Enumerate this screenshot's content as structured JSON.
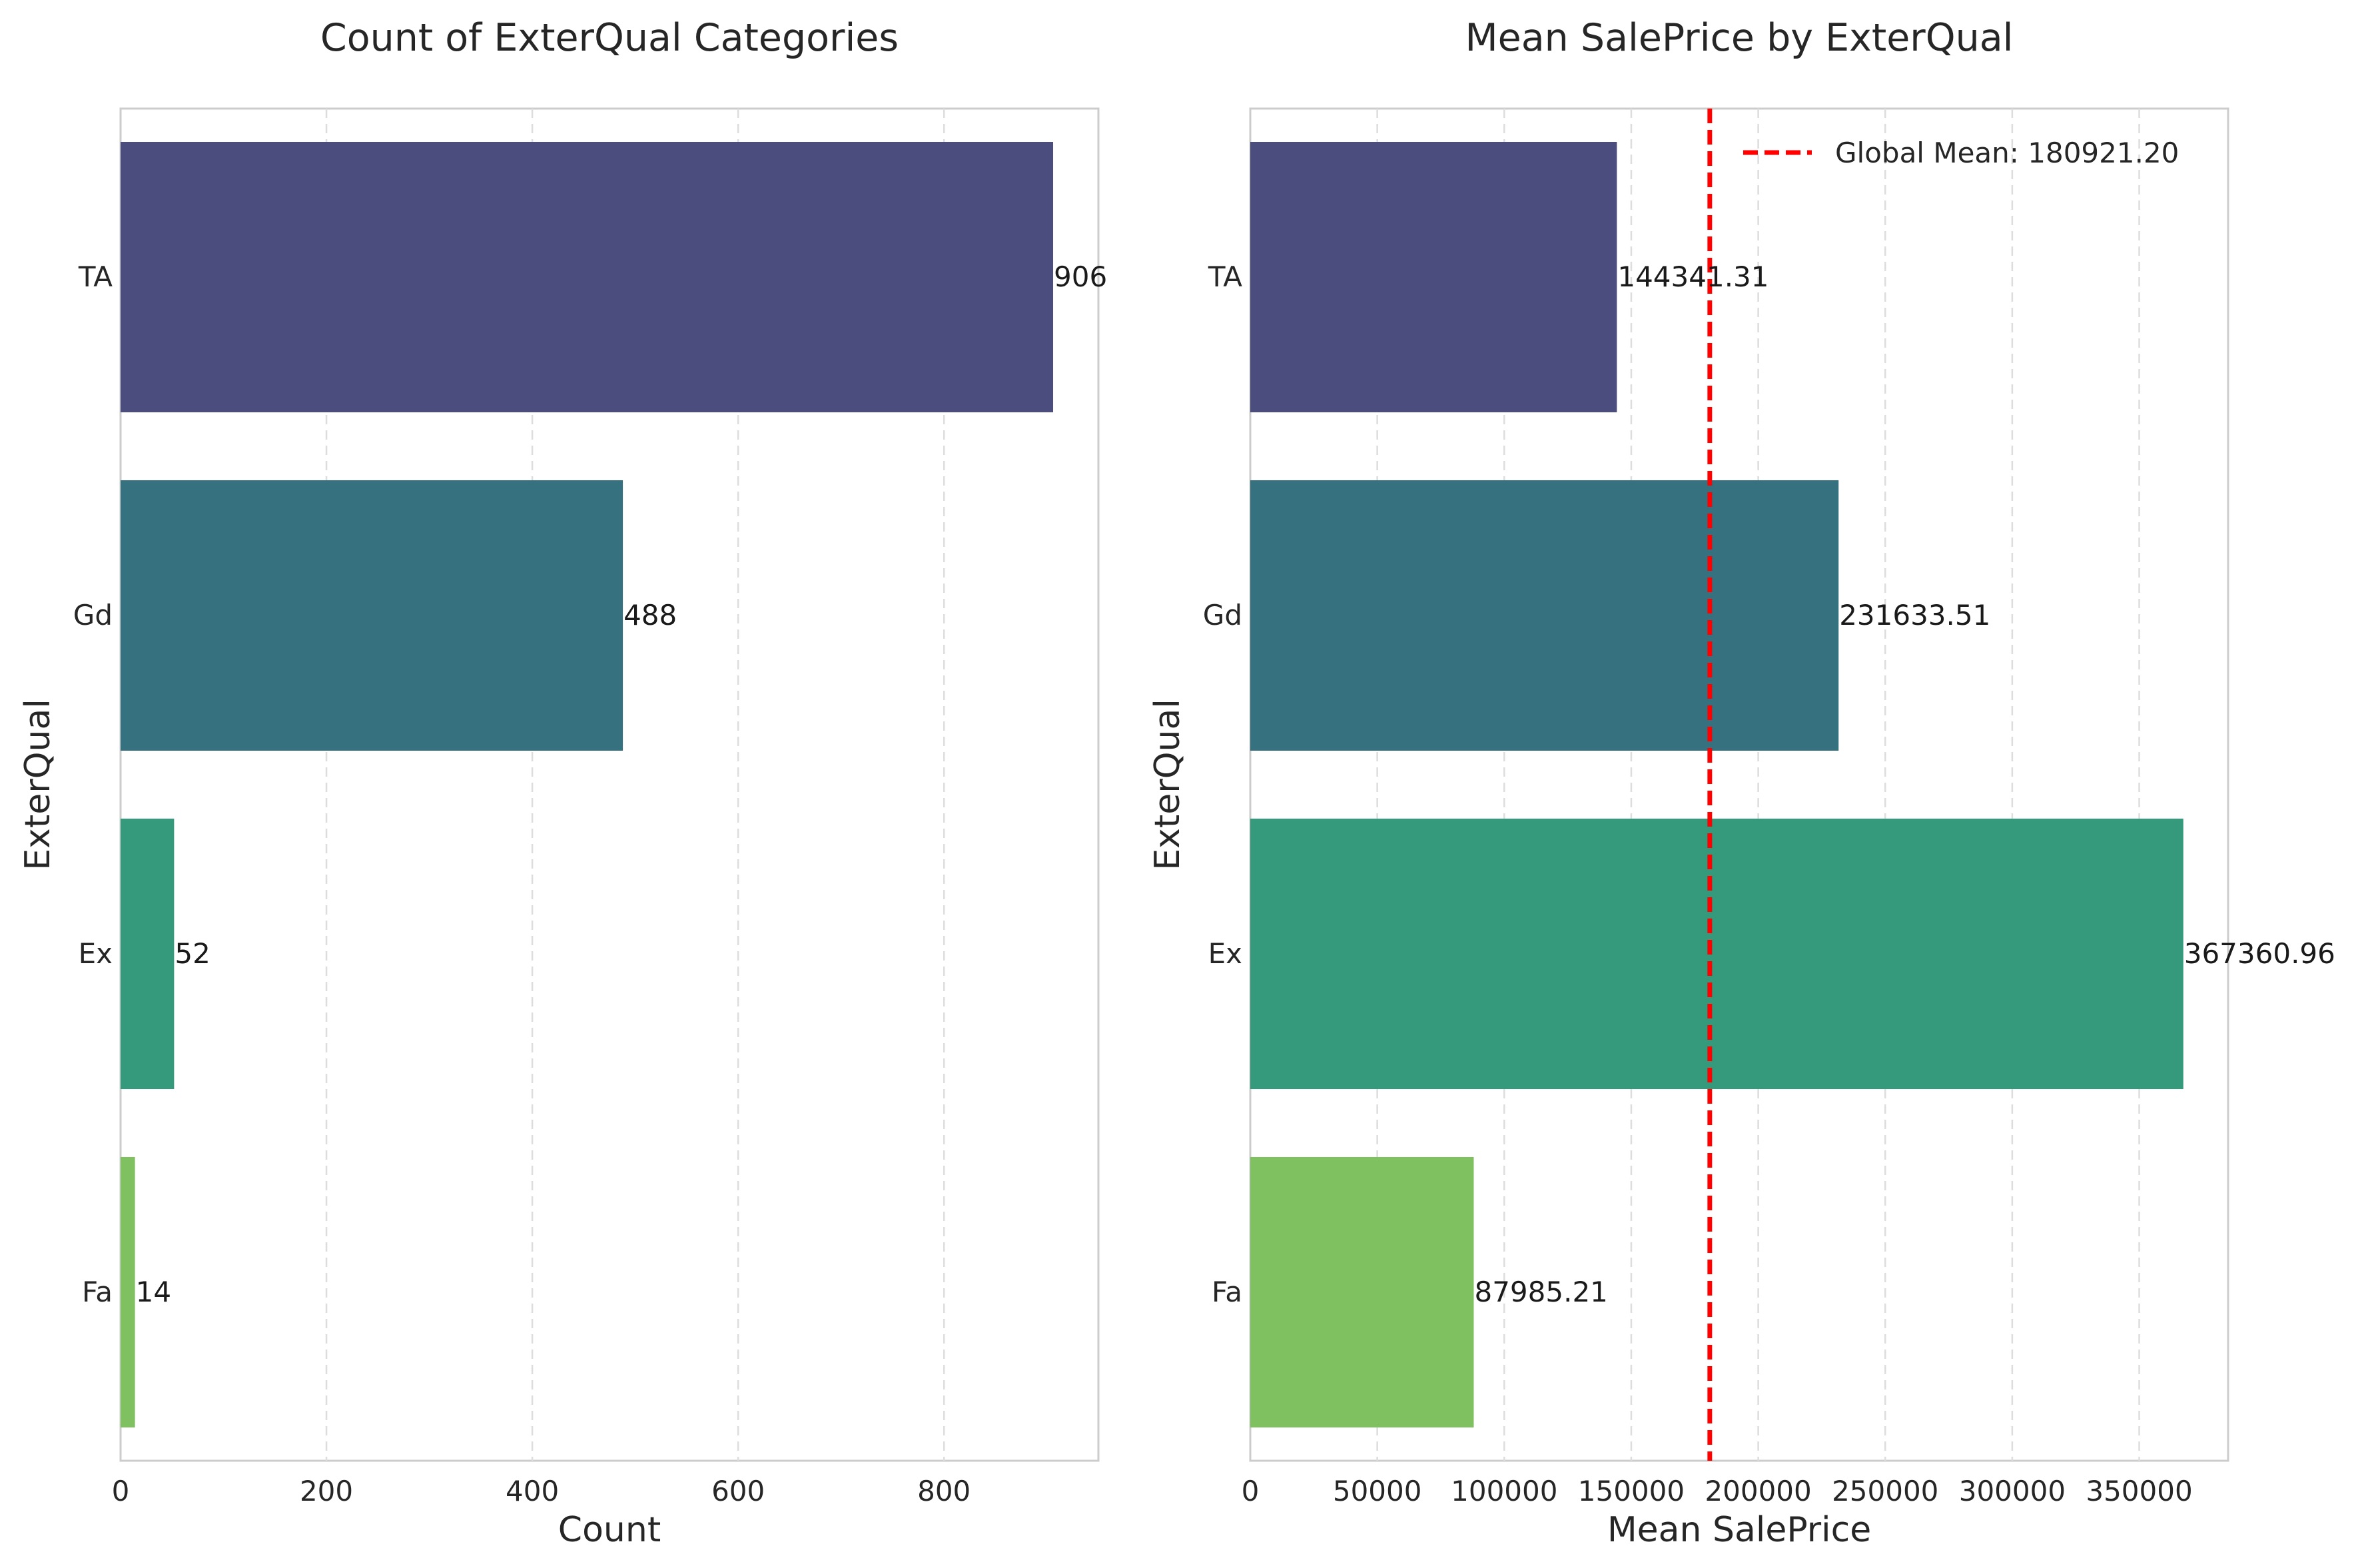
{
  "chart_data": [
    {
      "type": "bar",
      "orientation": "horizontal",
      "title": "Count of ExterQual Categories",
      "xlabel": "Count",
      "ylabel": "ExterQual",
      "categories": [
        "TA",
        "Gd",
        "Ex",
        "Fa"
      ],
      "values": [
        906,
        488,
        52,
        14
      ],
      "value_labels": [
        "906",
        "488",
        "52",
        "14"
      ],
      "xlim": [
        0,
        950
      ],
      "xticks": [
        0,
        200,
        400,
        600,
        800
      ],
      "xtick_labels": [
        "0",
        "200",
        "400",
        "600",
        "800"
      ],
      "grid": "x-dashed",
      "colors": [
        "#4a4d7d",
        "#36717f",
        "#35997b",
        "#7fc160"
      ]
    },
    {
      "type": "bar",
      "orientation": "horizontal",
      "title": "Mean SalePrice by ExterQual",
      "xlabel": "Mean SalePrice",
      "ylabel": "ExterQual",
      "categories": [
        "TA",
        "Gd",
        "Ex",
        "Fa"
      ],
      "values": [
        144341.31,
        231633.51,
        367360.96,
        87985.21
      ],
      "value_labels": [
        "144341.31",
        "231633.51",
        "367360.96",
        "87985.21"
      ],
      "xlim": [
        0,
        385000
      ],
      "xticks": [
        0,
        50000,
        100000,
        150000,
        200000,
        250000,
        300000,
        350000
      ],
      "xtick_labels": [
        "0",
        "50000",
        "100000",
        "150000",
        "200000",
        "250000",
        "300000",
        "350000"
      ],
      "grid": "x-dashed",
      "colors": [
        "#4a4d7d",
        "#36717f",
        "#35997b",
        "#7fc160"
      ],
      "reference_line": {
        "value": 180921.2,
        "label": "Global Mean: 180921.20",
        "color": "#ff0000",
        "style": "dashed"
      },
      "legend": "top-right"
    }
  ]
}
